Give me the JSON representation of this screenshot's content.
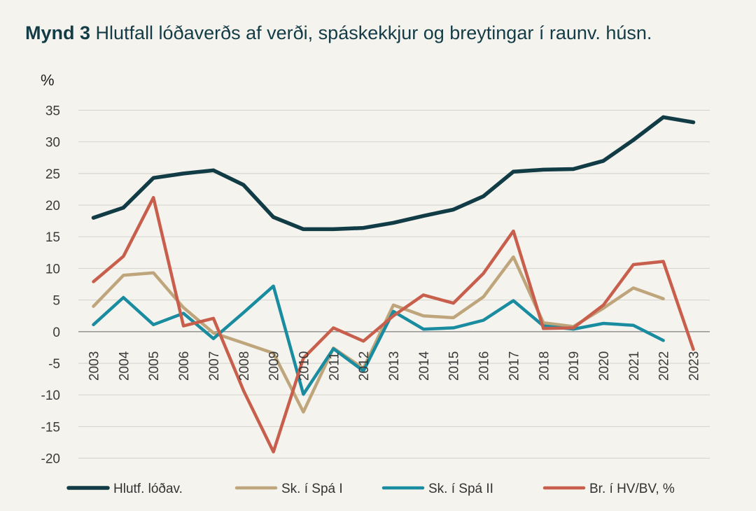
{
  "title": {
    "label": "Mynd 3",
    "text": "Hlutfall lóðaverðs af verði, spáskekkjur og breytingar í raunv. húsn."
  },
  "chart_data": {
    "type": "line",
    "ylabel": "%",
    "ylim": [
      -20,
      35
    ],
    "yticks": [
      35,
      30,
      25,
      20,
      15,
      10,
      5,
      0,
      -5,
      -10,
      -15,
      -20
    ],
    "grid": true,
    "legend_position": "bottom",
    "categories": [
      "2003",
      "2004",
      "2005",
      "2006",
      "2007",
      "2008",
      "2009",
      "2010",
      "2011",
      "2012",
      "2013",
      "2014",
      "2015",
      "2016",
      "2017",
      "2018",
      "2019",
      "2020",
      "2021",
      "2022",
      "2023"
    ],
    "series": [
      {
        "name": "Hlutf. lóðav.",
        "color": "#113c46",
        "values": [
          18,
          19.6,
          24.3,
          25,
          25.5,
          23.2,
          18.1,
          16.2,
          16.2,
          16.4,
          17.2,
          18.3,
          19.3,
          21.4,
          25.3,
          25.6,
          25.7,
          27,
          30.3,
          33.9,
          33.1
        ]
      },
      {
        "name": "Sk. í Spá I",
        "color": "#bfa57b",
        "values": [
          4,
          8.9,
          9.3,
          3.8,
          -0.2,
          -1.8,
          -3.4,
          -12.7,
          -2.6,
          -5.8,
          4.2,
          2.5,
          2.2,
          5.5,
          11.8,
          1.4,
          0.8,
          3.7,
          6.9,
          5.2,
          null
        ]
      },
      {
        "name": "Sk. í Spá II",
        "color": "#1a8ca0",
        "values": [
          1.1,
          5.4,
          1.1,
          2.9,
          -1.1,
          3,
          7.2,
          -9.9,
          -2.7,
          -6.2,
          3.2,
          0.4,
          0.6,
          1.8,
          4.9,
          0.9,
          0.4,
          1.3,
          1,
          -1.4,
          null
        ]
      },
      {
        "name": "Br. í HV/BV, %",
        "color": "#c85f4c",
        "values": [
          7.9,
          11.9,
          21.2,
          0.9,
          2.1,
          -9.3,
          -19,
          -4.2,
          0.6,
          -1.5,
          2.5,
          5.8,
          4.5,
          9.2,
          15.9,
          0.5,
          0.6,
          4.2,
          10.6,
          11.1,
          -2.8
        ]
      }
    ]
  }
}
